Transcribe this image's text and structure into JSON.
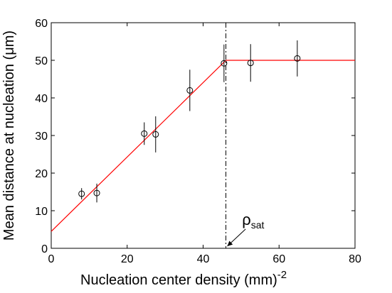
{
  "chart_data": {
    "type": "scatter",
    "xlabel": "Nucleation center density (mm)",
    "xlabel_superscript": "-2",
    "ylabel": "Mean distance at nucleation (μm)",
    "xlim": [
      0,
      80
    ],
    "ylim": [
      0,
      60
    ],
    "xticks": [
      0,
      20,
      40,
      60,
      80
    ],
    "yticks": [
      0,
      10,
      20,
      30,
      40,
      50,
      60
    ],
    "grid": false,
    "series": [
      {
        "marker": "open-circle",
        "color": "#000000",
        "points": [
          {
            "x": 8,
            "y": 14.5,
            "yerr": 1.5
          },
          {
            "x": 12,
            "y": 14.7,
            "yerr": 2.5
          },
          {
            "x": 24.5,
            "y": 30.5,
            "yerr": 3
          },
          {
            "x": 27.5,
            "y": 30.3,
            "yerr": 4.8
          },
          {
            "x": 36.5,
            "y": 42,
            "yerr": 5.5
          },
          {
            "x": 45.5,
            "y": 49.2,
            "yerr": 5
          },
          {
            "x": 52.5,
            "y": 49.3,
            "yerr": 5
          },
          {
            "x": 64.8,
            "y": 50.5,
            "yerr": 4.8
          }
        ]
      },
      {
        "type": "line",
        "color": "#ff0000",
        "x": [
          0,
          46,
          80
        ],
        "y": [
          4.5,
          50,
          50
        ]
      }
    ],
    "vline": {
      "x": 46,
      "style": "dash-dot",
      "color": "#000000"
    },
    "annotation": {
      "text": "ρ",
      "subscript": "sat",
      "arrow_to": {
        "x": 46,
        "y": 0
      },
      "text_at": {
        "x": 51,
        "y": 7
      }
    }
  }
}
